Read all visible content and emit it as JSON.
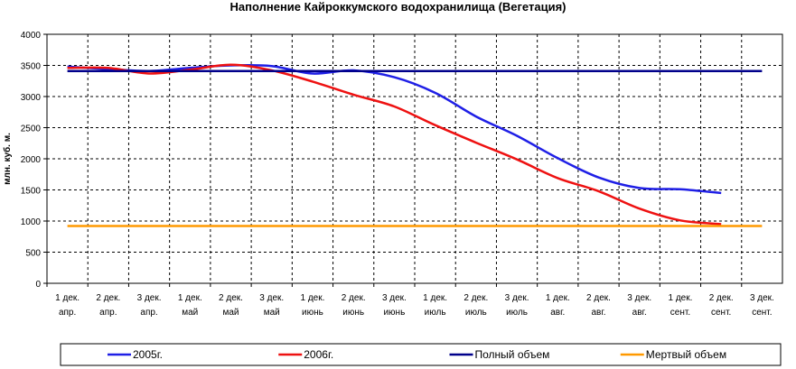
{
  "chart_data": {
    "type": "line",
    "title": "Наполнение Кайроккумского водохранилища (Вегетация)",
    "ylabel": "млн. куб. м.",
    "xlabel": "",
    "ylim": [
      0,
      4000
    ],
    "y_ticks": [
      0,
      500,
      1000,
      1500,
      2000,
      2500,
      3000,
      3500,
      4000
    ],
    "grid": true,
    "legend_position": "bottom",
    "categories": [
      [
        "1 дек.",
        "апр."
      ],
      [
        "2 дек.",
        "апр."
      ],
      [
        "3 дек.",
        "апр."
      ],
      [
        "1 дек.",
        "май"
      ],
      [
        "2 дек.",
        "май"
      ],
      [
        "3 дек.",
        "май"
      ],
      [
        "1 дек.",
        "июнь"
      ],
      [
        "2 дек.",
        "июнь"
      ],
      [
        "3 дек.",
        "июнь"
      ],
      [
        "1 дек.",
        "июль"
      ],
      [
        "2 дек.",
        "июль"
      ],
      [
        "3 дек.",
        "июль"
      ],
      [
        "1 дек.",
        "авг."
      ],
      [
        "2 дек.",
        "авг."
      ],
      [
        "3 дек.",
        "авг."
      ],
      [
        "1 дек.",
        "сент."
      ],
      [
        "2 дек.",
        "сент."
      ],
      [
        "3 дек.",
        "сент."
      ]
    ],
    "series": [
      {
        "name": "2005г.",
        "color": "#1f1fe6",
        "values": [
          3480,
          3440,
          3410,
          3460,
          3500,
          3490,
          3370,
          3420,
          3310,
          3060,
          2680,
          2370,
          2010,
          1700,
          1530,
          1510,
          1450,
          null
        ]
      },
      {
        "name": "2006г.",
        "color": "#ee1111",
        "values": [
          3460,
          3460,
          3370,
          3430,
          3510,
          3420,
          3240,
          3030,
          2840,
          2540,
          2260,
          1990,
          1690,
          1480,
          1200,
          1010,
          950,
          null
        ]
      },
      {
        "name": "Полный объем",
        "color": "#00008b",
        "values": [
          3410,
          3410,
          3410,
          3410,
          3410,
          3410,
          3410,
          3410,
          3410,
          3410,
          3410,
          3410,
          3410,
          3410,
          3410,
          3410,
          3410,
          3410
        ]
      },
      {
        "name": "Мертвый объем",
        "color": "#ff9900",
        "values": [
          920,
          920,
          920,
          920,
          920,
          920,
          920,
          920,
          920,
          920,
          920,
          920,
          920,
          920,
          920,
          920,
          920,
          920
        ]
      }
    ]
  }
}
